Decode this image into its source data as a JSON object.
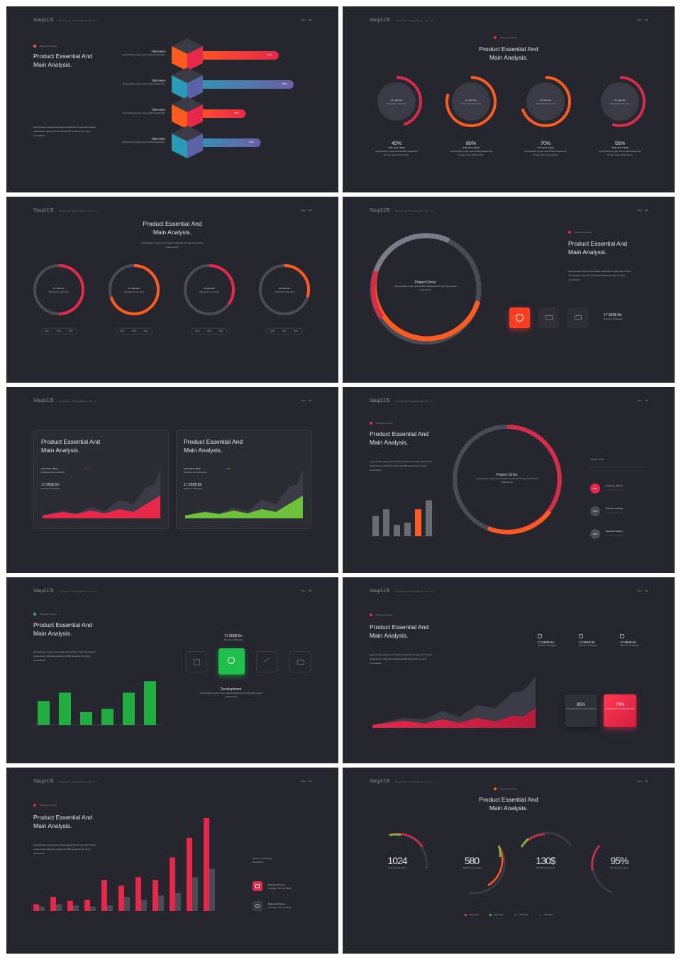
{
  "brand": {
    "name": "SimpLUX",
    "tagline": "Essential Presentation Kit v1",
    "page_label": "Page:",
    "page_no": "01"
  },
  "common": {
    "marker": "Business Process",
    "title": "Product Essential And\nMain Analysis.",
    "desc": "Appropriately supply web-enabled leadership through client based relationships. Efficiently whiteboard B2B leadership for sticky potentialities."
  },
  "s1": {
    "items": [
      {
        "title": "Title Here",
        "desc": "Appropriately supply web-enabled leadership.",
        "pct": "86%",
        "level": 0.86
      },
      {
        "title": "Title Here",
        "desc": "Appropriately supply web-enabled leadership.",
        "pct": "100%",
        "level": 1.0
      },
      {
        "title": "Title Here",
        "desc": "Appropriately supply web-enabled leadership.",
        "pct": "55%",
        "level": 0.55
      },
      {
        "title": "Title Here",
        "desc": "Appropriately supply web-enabled leadership.",
        "pct": "69%",
        "level": 0.69
      }
    ]
  },
  "s2": {
    "items": [
      {
        "label": "01. Element",
        "sub": "Description Text Here",
        "pct": "45%",
        "value": 0.45,
        "cap": "SUB TEXT HERE",
        "desc": "Appropriately supply web-enabled leadership through client relationships."
      },
      {
        "label": "02. Element",
        "sub": "Description Text Here",
        "pct": "80%",
        "value": 0.8,
        "cap": "SUB TEXT HERE",
        "desc": "Appropriately supply web-enabled leadership through client relationships."
      },
      {
        "label": "03. Element",
        "sub": "Description Text Here",
        "pct": "70%",
        "value": 0.7,
        "cap": "SUB TEXT HERE",
        "desc": "Appropriately supply web-enabled leadership through client relationships."
      },
      {
        "label": "04. Element",
        "sub": "Description Text Here",
        "pct": "55%",
        "value": 0.55,
        "cap": "SUB TEXT HERE",
        "desc": "Appropriately supply web-enabled leadership through client relationships."
      }
    ]
  },
  "s3": {
    "desc": "Appropriately supply web-enabled leadership through client based relationships.",
    "items": [
      {
        "label": "01. Element",
        "sub": "Description Text Here",
        "value": 0.5
      },
      {
        "label": "02. Element",
        "sub": "Description Text Here",
        "value": 0.7
      },
      {
        "label": "03. Element",
        "sub": "Description Text Here",
        "value": 0.35
      },
      {
        "label": "04. Element",
        "sub": "Description Text Here",
        "value": 0.3
      }
    ],
    "legend": [
      "50%",
      "35%",
      "30%"
    ]
  },
  "s4": {
    "circle_title": "Project Circle.",
    "circle_desc": "Appropriately supply web-enabled leadership through client based relationships.",
    "stat": "17,955$ Bn",
    "stat_sub": "Business Strategies"
  },
  "s5": {
    "cards": [
      {
        "cap": "SUB TEXT HERE",
        "cap2": "Business and Consulting",
        "pct": "65%",
        "stat": "17,955$ Bn",
        "stat_sub": "Business Strategies",
        "accent": "#e8284a"
      },
      {
        "cap": "SUB TEXT HERE",
        "cap2": "Business and Consulting",
        "pct": "90%",
        "stat": "17,955$ Bn",
        "stat_sub": "Business Strategies",
        "accent": "#6ec13c"
      }
    ]
  },
  "s6": {
    "circle_title": "Project Circle.",
    "circle_desc": "Appropriately supply web-enabled leadership through client based relationships.",
    "chart_title": "CHART TITLE",
    "legend": [
      {
        "pct": "85%",
        "name": "Customer Service",
        "desc": "Sub text goes here"
      },
      {
        "pct": "45%",
        "name": "Business Strategy",
        "desc": "Sub text goes here"
      },
      {
        "pct": "90%",
        "name": "Essential Training",
        "desc": "Sub text goes here"
      }
    ]
  },
  "s7": {
    "stat": "17,955$ Bn",
    "stat_sub": "Business Strategies",
    "dev_title": "Development.",
    "dev_desc": "Appropriately supply web-enabled leadership through client based relationships."
  },
  "s8": {
    "stats": [
      {
        "icon": "send-icon",
        "value": "17,955$ Bn",
        "sub": "Business Strategies"
      },
      {
        "icon": "gear-icon",
        "value": "17,955$ Bn",
        "sub": "Business Strategies"
      },
      {
        "icon": "sliders-icon",
        "value": "17,955$ Bn",
        "sub": "Business Strategies"
      }
    ],
    "boxes": [
      {
        "pct": "85%",
        "desc": "Appropriately web-enable leadership"
      },
      {
        "pct": "70%",
        "desc": "Appropriately web-enable leadership"
      }
    ]
  },
  "s9": {
    "side_title": "Design or Marketing Description",
    "items": [
      {
        "name": "Business Process",
        "desc": "Average: 70% (70,152$)"
      },
      {
        "name": "Business Process",
        "desc": "Average: 70% (70,152$)"
      }
    ]
  },
  "s10": {
    "items": [
      {
        "value": "1024",
        "sub": "Total Revenue Here"
      },
      {
        "value": "580",
        "sub": "Total Revenue Here"
      },
      {
        "value": "130$",
        "sub": "Total Revenue Here"
      },
      {
        "value": "95%",
        "sub": "Total Revenue Here"
      }
    ],
    "legend": [
      "Tittle Here",
      "Tittle Here",
      "Tittle Here",
      "Tittle Here"
    ]
  },
  "chart_data": [
    {
      "type": "bar",
      "slide": 5,
      "categories": [
        "1",
        "2",
        "3",
        "4",
        "5",
        "6"
      ],
      "values": [
        45,
        60,
        25,
        30,
        60,
        80
      ]
    },
    {
      "type": "bar",
      "slide": 7,
      "categories": [
        "1",
        "2",
        "3",
        "4",
        "5",
        "6"
      ],
      "values": [
        52,
        70,
        28,
        35,
        70,
        95
      ]
    },
    {
      "type": "bar",
      "slide": 9,
      "series": [
        {
          "values": [
            12,
            25,
            18,
            20,
            55,
            45,
            60,
            55,
            95,
            130,
            165
          ]
        },
        {
          "values": [
            8,
            12,
            10,
            8,
            10,
            25,
            20,
            28,
            32,
            60,
            75
          ]
        }
      ]
    }
  ]
}
